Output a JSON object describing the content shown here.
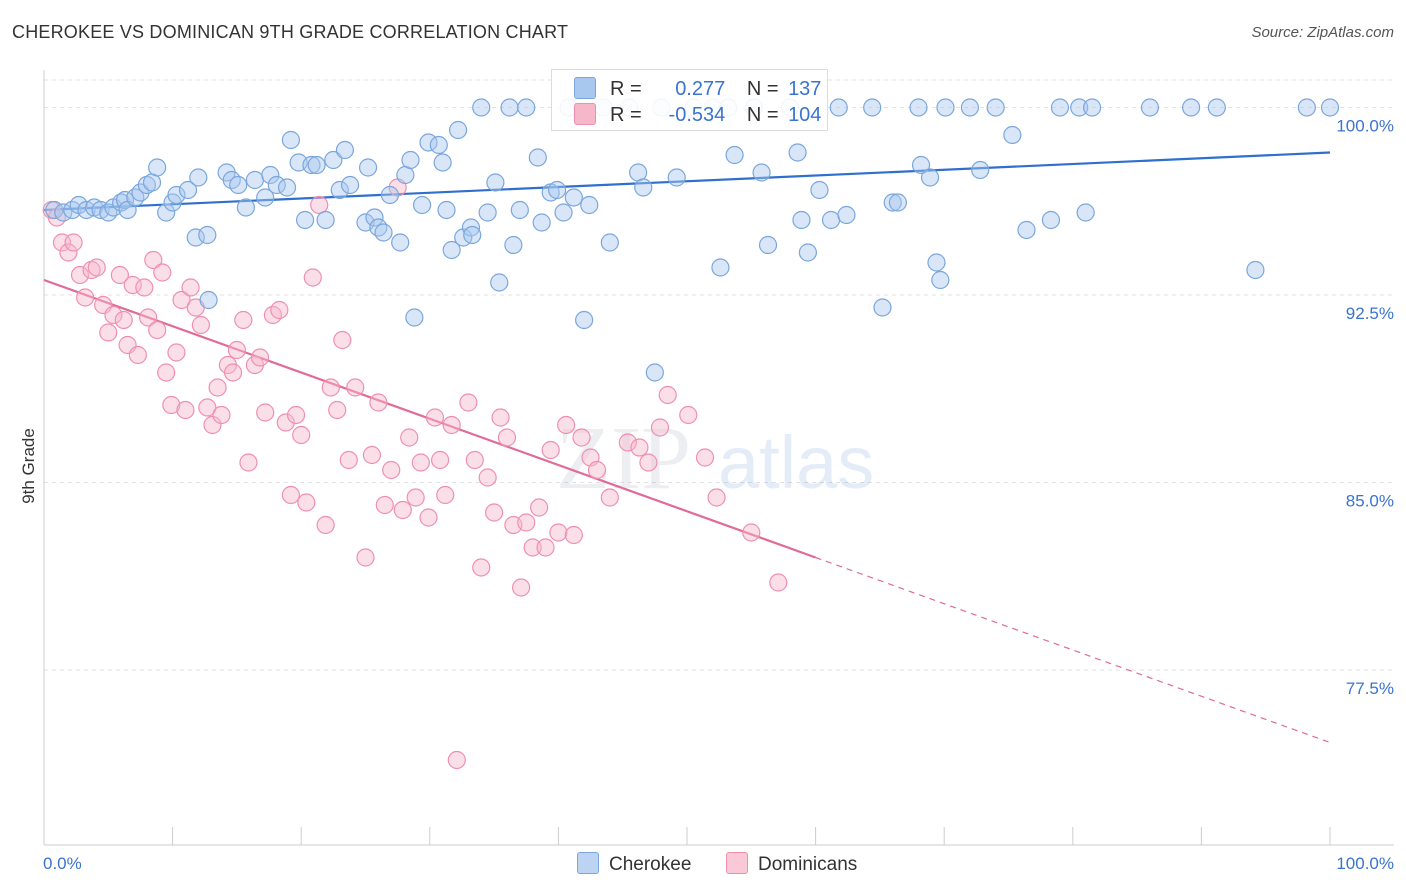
{
  "header": {
    "title": "CHEROKEE VS DOMINICAN 9TH GRADE CORRELATION CHART",
    "source": "Source: ZipAtlas.com"
  },
  "legend": {
    "rows": [
      {
        "r_label": "R =",
        "r_value": "0.277",
        "n_label": "N =",
        "n_value": "137"
      },
      {
        "r_label": "R =",
        "r_value": "-0.534",
        "n_label": "N =",
        "n_value": "104"
      }
    ],
    "bottom": [
      "Cherokee",
      "Dominicans"
    ]
  },
  "watermark": {
    "zip": "ZIP",
    "atlas": "atlas"
  },
  "colors": {
    "cherokee_fill": "#a9c8ef",
    "cherokee_stroke": "#7aa6dc",
    "cherokee_line": "#2f6fce",
    "dominican_fill": "#f7b7cb",
    "dominican_stroke": "#ef8fae",
    "dominican_line": "#e06b98",
    "axis_label_blue": "#3a73d0"
  },
  "chart_data": {
    "type": "scatter",
    "title": "CHEROKEE VS DOMINICAN 9TH GRADE CORRELATION CHART",
    "xlabel": "",
    "ylabel": "9th Grade",
    "xlim": [
      0,
      100
    ],
    "ylim": [
      70.5,
      101.5
    ],
    "x_tick_labels": [
      "0.0%",
      "100.0%"
    ],
    "y_ticks": [
      77.5,
      85.0,
      92.5,
      100.0
    ],
    "y_tick_labels": [
      "77.5%",
      "85.0%",
      "92.5%",
      "100.0%"
    ],
    "grid": true,
    "legend_position": "top-center",
    "series": [
      {
        "name": "Cherokee",
        "R": 0.277,
        "N": 137,
        "trend": {
          "x": [
            0,
            100
          ],
          "y": [
            95.9,
            98.2
          ]
        },
        "points": [
          [
            0.8,
            95.9
          ],
          [
            1.5,
            95.8
          ],
          [
            2.2,
            95.9
          ],
          [
            2.7,
            96.1
          ],
          [
            3.3,
            95.9
          ],
          [
            3.9,
            96.0
          ],
          [
            4.4,
            95.9
          ],
          [
            5.0,
            95.8
          ],
          [
            5.4,
            96.0
          ],
          [
            6.0,
            96.2
          ],
          [
            6.3,
            96.3
          ],
          [
            6.5,
            95.9
          ],
          [
            7.1,
            96.4
          ],
          [
            7.5,
            96.6
          ],
          [
            8.0,
            96.9
          ],
          [
            8.4,
            97.0
          ],
          [
            8.8,
            97.6
          ],
          [
            9.5,
            95.8
          ],
          [
            10.0,
            96.2
          ],
          [
            10.3,
            96.5
          ],
          [
            11.2,
            96.7
          ],
          [
            11.8,
            94.8
          ],
          [
            12.0,
            97.2
          ],
          [
            12.7,
            94.9
          ],
          [
            12.8,
            92.3
          ],
          [
            14.2,
            97.4
          ],
          [
            14.6,
            97.1
          ],
          [
            15.1,
            96.9
          ],
          [
            15.7,
            96.0
          ],
          [
            16.4,
            97.1
          ],
          [
            17.2,
            96.4
          ],
          [
            17.6,
            97.3
          ],
          [
            18.1,
            96.9
          ],
          [
            18.9,
            96.8
          ],
          [
            19.2,
            98.7
          ],
          [
            19.8,
            97.8
          ],
          [
            20.3,
            95.5
          ],
          [
            20.8,
            97.7
          ],
          [
            21.2,
            97.7
          ],
          [
            21.9,
            95.5
          ],
          [
            22.5,
            97.9
          ],
          [
            23.0,
            96.7
          ],
          [
            23.4,
            98.3
          ],
          [
            23.8,
            96.9
          ],
          [
            25.0,
            95.4
          ],
          [
            25.2,
            97.6
          ],
          [
            25.7,
            95.6
          ],
          [
            26.0,
            95.2
          ],
          [
            26.4,
            95.0
          ],
          [
            26.9,
            96.5
          ],
          [
            27.7,
            94.6
          ],
          [
            28.1,
            97.3
          ],
          [
            28.5,
            97.9
          ],
          [
            28.8,
            91.6
          ],
          [
            29.4,
            96.1
          ],
          [
            29.9,
            98.6
          ],
          [
            30.7,
            98.5
          ],
          [
            31.0,
            97.8
          ],
          [
            31.3,
            95.9
          ],
          [
            31.7,
            94.3
          ],
          [
            32.2,
            99.1
          ],
          [
            32.6,
            94.8
          ],
          [
            33.2,
            95.2
          ],
          [
            33.3,
            94.9
          ],
          [
            34.0,
            100.0
          ],
          [
            34.5,
            95.8
          ],
          [
            35.1,
            97.0
          ],
          [
            35.4,
            93.0
          ],
          [
            36.2,
            100.0
          ],
          [
            36.5,
            94.5
          ],
          [
            37.0,
            95.9
          ],
          [
            37.5,
            100.0
          ],
          [
            38.4,
            98.0
          ],
          [
            38.7,
            95.4
          ],
          [
            39.4,
            96.6
          ],
          [
            39.9,
            96.7
          ],
          [
            40.4,
            95.8
          ],
          [
            40.8,
            100.0
          ],
          [
            41.2,
            96.4
          ],
          [
            42.0,
            91.5
          ],
          [
            42.4,
            96.1
          ],
          [
            43.5,
            100.0
          ],
          [
            44.0,
            94.6
          ],
          [
            45.5,
            100.0
          ],
          [
            46.2,
            97.4
          ],
          [
            46.6,
            96.8
          ],
          [
            47.5,
            89.4
          ],
          [
            48.0,
            100.0
          ],
          [
            49.2,
            97.2
          ],
          [
            50.5,
            100.0
          ],
          [
            52.0,
            100.0
          ],
          [
            52.6,
            93.6
          ],
          [
            53.2,
            100.0
          ],
          [
            53.7,
            98.1
          ],
          [
            55.2,
            100.0
          ],
          [
            55.8,
            97.4
          ],
          [
            56.3,
            94.5
          ],
          [
            58.0,
            100.0
          ],
          [
            58.6,
            98.2
          ],
          [
            58.9,
            95.5
          ],
          [
            59.4,
            94.2
          ],
          [
            60.3,
            96.7
          ],
          [
            61.2,
            95.5
          ],
          [
            61.8,
            100.0
          ],
          [
            62.4,
            95.7
          ],
          [
            64.4,
            100.0
          ],
          [
            65.2,
            92.0
          ],
          [
            66.0,
            96.2
          ],
          [
            66.4,
            96.2
          ],
          [
            68.0,
            100.0
          ],
          [
            68.2,
            97.7
          ],
          [
            68.9,
            97.2
          ],
          [
            69.4,
            93.8
          ],
          [
            69.7,
            93.1
          ],
          [
            70.1,
            100.0
          ],
          [
            72.0,
            100.0
          ],
          [
            72.8,
            97.5
          ],
          [
            74.0,
            100.0
          ],
          [
            75.3,
            98.9
          ],
          [
            76.4,
            95.1
          ],
          [
            78.3,
            95.5
          ],
          [
            79.0,
            100.0
          ],
          [
            80.5,
            100.0
          ],
          [
            81.0,
            95.8
          ],
          [
            81.5,
            100.0
          ],
          [
            86.0,
            100.0
          ],
          [
            89.2,
            100.0
          ],
          [
            91.2,
            100.0
          ],
          [
            94.2,
            93.5
          ],
          [
            98.2,
            100.0
          ],
          [
            100.0,
            100.0
          ]
        ]
      },
      {
        "name": "Dominicans",
        "R": -0.534,
        "N": 104,
        "trend": {
          "x": [
            0,
            100
          ],
          "y": [
            93.1,
            74.6
          ],
          "solid_until_x": 60
        },
        "points": [
          [
            0.6,
            95.9
          ],
          [
            1.0,
            95.6
          ],
          [
            1.4,
            94.6
          ],
          [
            1.9,
            94.2
          ],
          [
            2.3,
            94.6
          ],
          [
            2.8,
            93.3
          ],
          [
            3.2,
            92.4
          ],
          [
            3.7,
            93.5
          ],
          [
            4.1,
            93.6
          ],
          [
            4.6,
            92.1
          ],
          [
            5.0,
            91.0
          ],
          [
            5.4,
            91.7
          ],
          [
            5.9,
            93.3
          ],
          [
            6.2,
            91.5
          ],
          [
            6.5,
            90.5
          ],
          [
            6.9,
            92.9
          ],
          [
            7.3,
            90.1
          ],
          [
            7.8,
            92.8
          ],
          [
            8.1,
            91.6
          ],
          [
            8.5,
            93.9
          ],
          [
            8.8,
            91.1
          ],
          [
            9.2,
            93.4
          ],
          [
            9.5,
            89.4
          ],
          [
            9.9,
            88.1
          ],
          [
            10.3,
            90.2
          ],
          [
            10.7,
            92.3
          ],
          [
            11.0,
            87.9
          ],
          [
            11.4,
            92.8
          ],
          [
            11.8,
            92.0
          ],
          [
            12.2,
            91.3
          ],
          [
            12.7,
            88.0
          ],
          [
            13.1,
            87.3
          ],
          [
            13.5,
            88.8
          ],
          [
            13.8,
            87.7
          ],
          [
            14.3,
            89.7
          ],
          [
            14.7,
            89.4
          ],
          [
            15.0,
            90.3
          ],
          [
            15.5,
            91.5
          ],
          [
            15.9,
            85.8
          ],
          [
            16.4,
            89.7
          ],
          [
            16.8,
            90.0
          ],
          [
            17.2,
            87.8
          ],
          [
            17.8,
            91.7
          ],
          [
            18.3,
            91.9
          ],
          [
            18.8,
            87.4
          ],
          [
            19.2,
            84.5
          ],
          [
            19.6,
            87.7
          ],
          [
            20.0,
            86.9
          ],
          [
            20.4,
            84.2
          ],
          [
            20.9,
            93.2
          ],
          [
            21.4,
            96.1
          ],
          [
            21.9,
            83.3
          ],
          [
            22.3,
            88.8
          ],
          [
            22.8,
            87.9
          ],
          [
            23.2,
            90.7
          ],
          [
            23.7,
            85.9
          ],
          [
            24.2,
            88.8
          ],
          [
            25.0,
            82.0
          ],
          [
            25.5,
            86.1
          ],
          [
            26.0,
            88.2
          ],
          [
            26.5,
            84.1
          ],
          [
            27.0,
            85.5
          ],
          [
            27.5,
            96.8
          ],
          [
            27.9,
            83.9
          ],
          [
            28.4,
            86.8
          ],
          [
            28.9,
            84.4
          ],
          [
            29.3,
            85.8
          ],
          [
            29.9,
            83.6
          ],
          [
            30.4,
            87.6
          ],
          [
            30.8,
            85.9
          ],
          [
            31.2,
            84.5
          ],
          [
            31.7,
            87.3
          ],
          [
            32.1,
            73.9
          ],
          [
            33.0,
            88.2
          ],
          [
            33.5,
            85.9
          ],
          [
            34.0,
            81.6
          ],
          [
            34.5,
            85.2
          ],
          [
            35.0,
            83.8
          ],
          [
            35.5,
            87.6
          ],
          [
            36.0,
            86.8
          ],
          [
            36.5,
            83.3
          ],
          [
            37.1,
            80.8
          ],
          [
            37.5,
            83.4
          ],
          [
            38.0,
            82.4
          ],
          [
            38.5,
            84.0
          ],
          [
            39.0,
            82.4
          ],
          [
            39.4,
            86.3
          ],
          [
            40.0,
            83.0
          ],
          [
            40.6,
            87.3
          ],
          [
            41.2,
            82.9
          ],
          [
            41.8,
            86.8
          ],
          [
            42.5,
            86.0
          ],
          [
            43.0,
            85.5
          ],
          [
            44.0,
            84.4
          ],
          [
            45.4,
            86.6
          ],
          [
            46.3,
            86.4
          ],
          [
            47.0,
            85.8
          ],
          [
            47.9,
            87.2
          ],
          [
            48.5,
            88.5
          ],
          [
            50.1,
            87.7
          ],
          [
            51.4,
            86.0
          ],
          [
            52.3,
            84.4
          ],
          [
            55.0,
            83.0
          ],
          [
            57.1,
            81.0
          ]
        ]
      }
    ]
  }
}
